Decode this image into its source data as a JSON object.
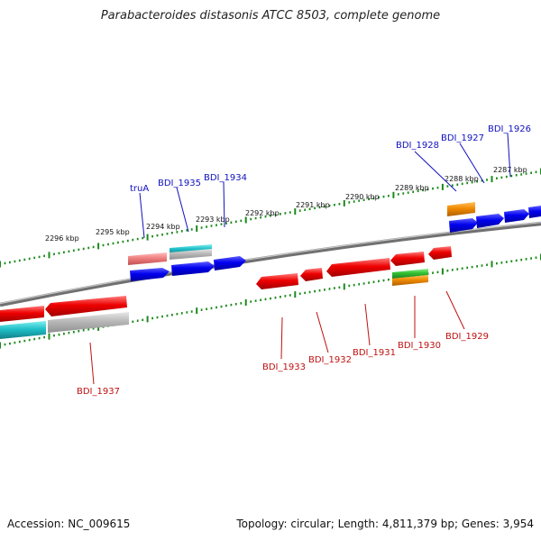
{
  "title": "Parabacteroides distasonis ATCC 8503, complete genome",
  "footer": {
    "accession": "Accession: NC_009615",
    "stats": "Topology: circular; Length: 4,811,379 bp; Genes: 3,954"
  },
  "colors": {
    "forward_gene": "#0000ee",
    "reverse_gene": "#ee0000",
    "rna_gene": "#20c0c8",
    "pseudo_gene": "#b8b8b8",
    "orange_feature": "#f08a00",
    "green_feature": "#30c030",
    "pink_feature": "#f08080",
    "tick": "#1a8a1a",
    "backbone": "#808080"
  },
  "kbp_labels": [
    "2296 kbp",
    "2295 kbp",
    "2294 kbp",
    "2293 kbp",
    "2292 kbp",
    "2291 kbp",
    "2290 kbp",
    "2289 kbp",
    "2288 kbp",
    "2287 kbp"
  ],
  "top_labels": [
    "truA",
    "BDI_1935",
    "BDI_1934",
    "BDI_1928",
    "BDI_1927",
    "BDI_1926"
  ],
  "bottom_labels": [
    "BDI_1937",
    "BDI_1933",
    "BDI_1932",
    "BDI_1931",
    "BDI_1930",
    "BDI_1929"
  ]
}
